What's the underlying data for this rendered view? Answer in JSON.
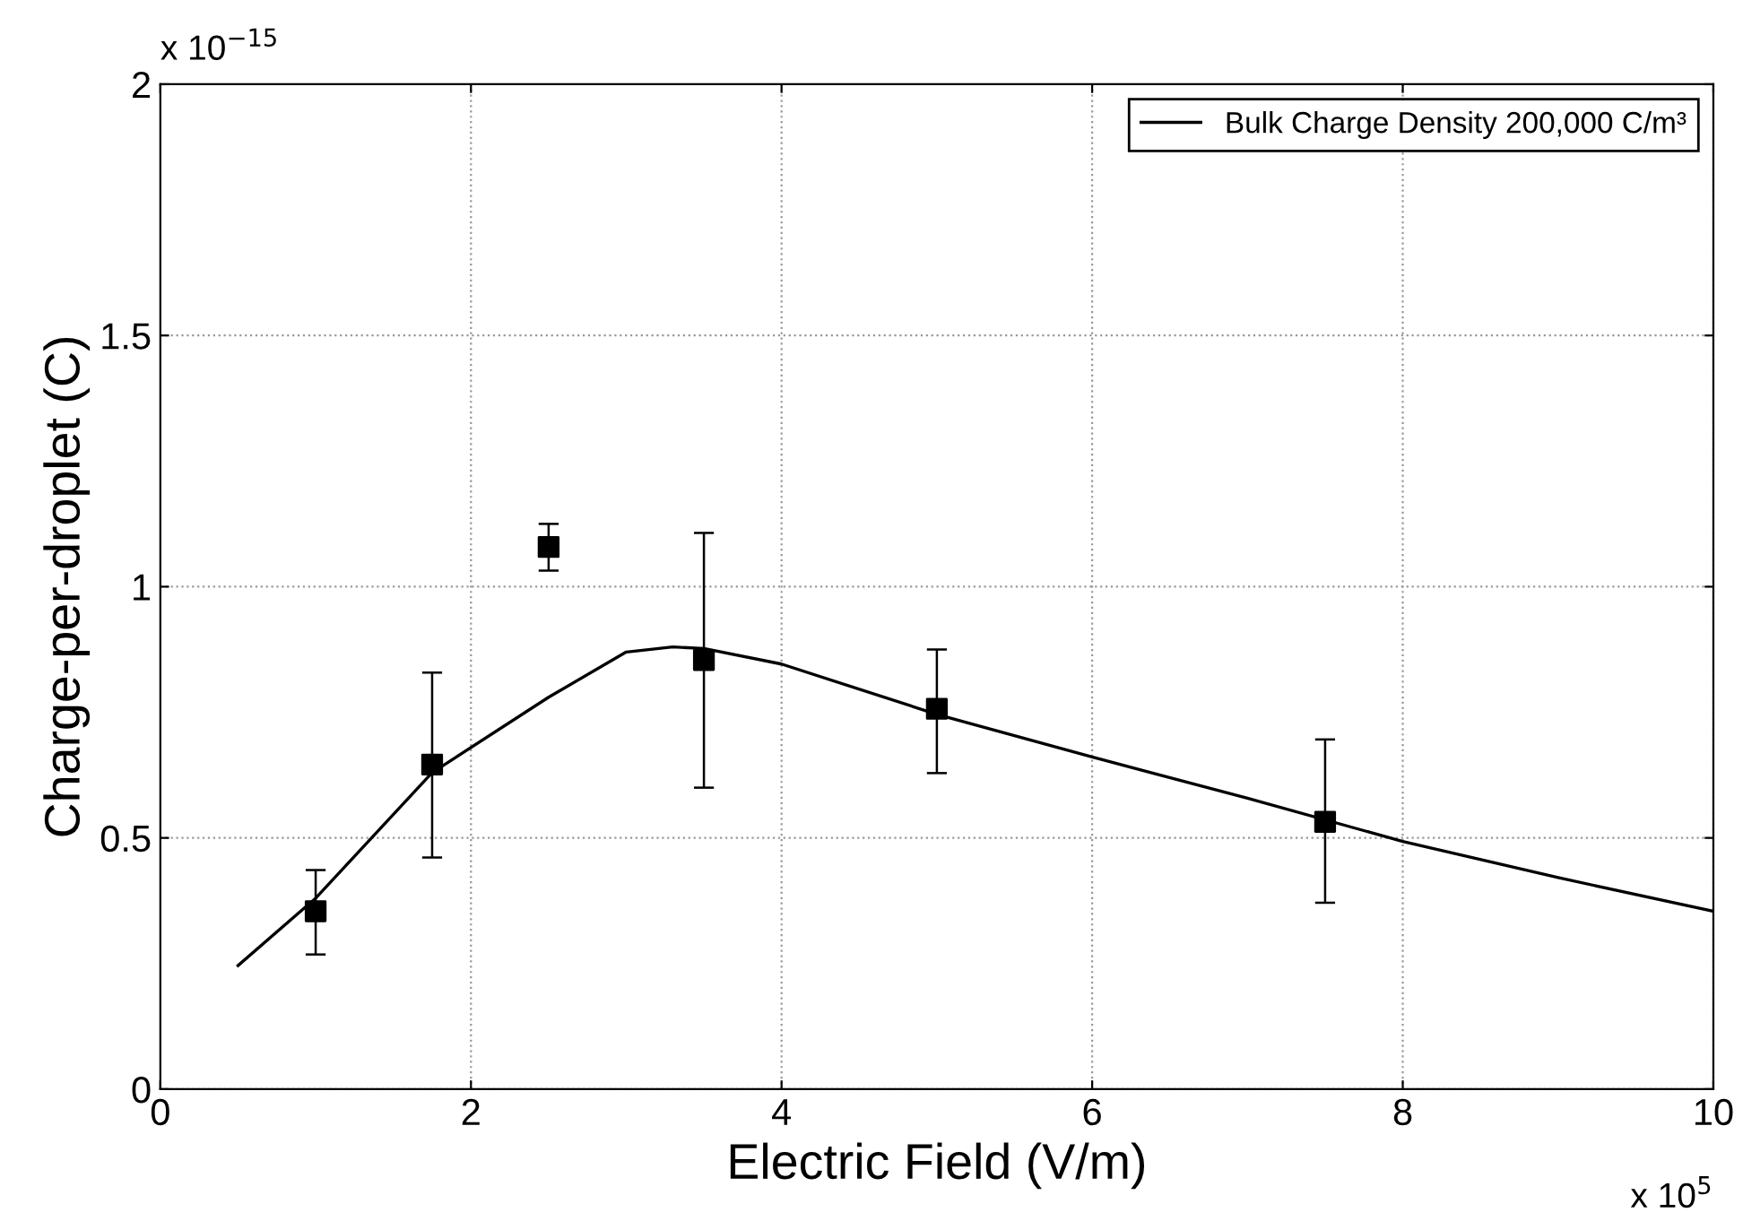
{
  "chart_data": {
    "type": "line",
    "xlabel": "Electric Field (V/m)",
    "ylabel": "Charge-per-droplet (C)",
    "xlim": [
      0,
      10
    ],
    "ylim": [
      0,
      2
    ],
    "xticks": [
      0,
      2,
      4,
      6,
      8,
      10
    ],
    "yticks": [
      0,
      0.5,
      1,
      1.5,
      2
    ],
    "grid": true,
    "legend": "top right",
    "annotations": [
      "x 10$^{−15}$",
      "x 10$^{5}$"
    ],
    "series": [
      {
        "name": "Bulk Charge Density 200,000 C/m³",
        "color": "#000000",
        "marker": "none",
        "line_style": "solid",
        "x": [
          0.5,
          1,
          1.75,
          2.5,
          3,
          3.3,
          3.5,
          4,
          5,
          6,
          7,
          8,
          9,
          10
        ],
        "values": [
          0.246,
          0.38,
          0.63,
          0.78,
          0.87,
          0.88,
          0.877,
          0.846,
          0.746,
          0.661,
          0.579,
          0.493,
          0.421,
          0.354
        ]
      },
      {
        "type": "scatter",
        "color": "#000000",
        "marker": "square",
        "x": [
          1,
          1.75,
          2.5,
          3.5,
          5,
          7.5
        ],
        "values": [
          0.354,
          0.646,
          1.079,
          0.854,
          0.757,
          0.532
        ],
        "errors": [
          [
            0.268,
            0.436
          ],
          [
            0.461,
            0.829
          ],
          [
            1.032,
            1.125
          ],
          [
            0.6,
            1.107
          ],
          [
            0.629,
            0.875
          ],
          [
            0.371,
            0.696
          ]
        ]
      }
    ]
  }
}
